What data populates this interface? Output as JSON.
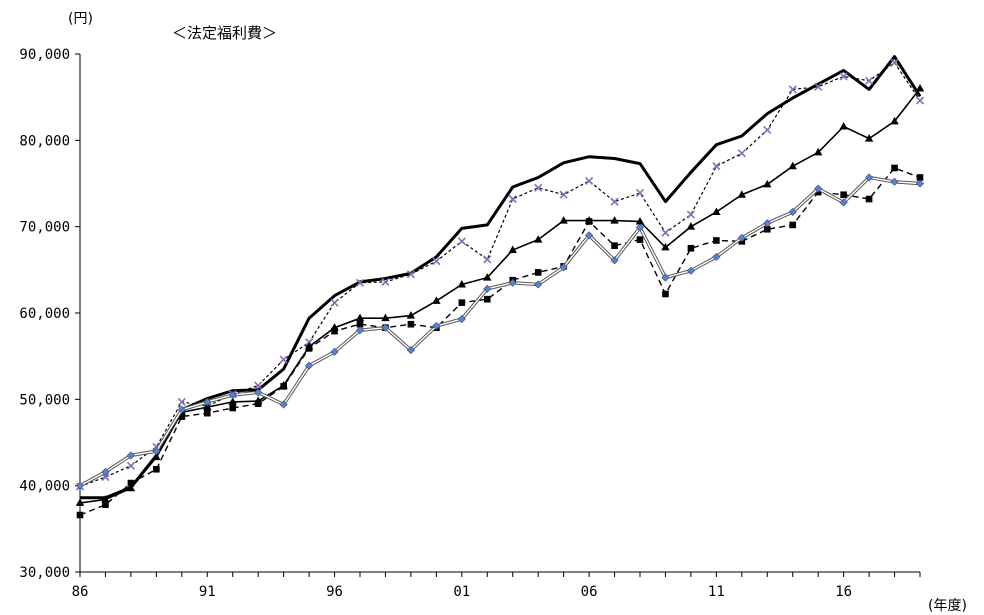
{
  "chart_data": {
    "type": "line",
    "title": "＜法定福利費＞",
    "ylabel": "(円)",
    "xlabel": "(年度)",
    "ylim": [
      30000,
      90000
    ],
    "y_ticks": [
      "30,000",
      "40,000",
      "50,000",
      "60,000",
      "70,000",
      "80,000",
      "90,000"
    ],
    "y_tick_values": [
      30000,
      40000,
      50000,
      60000,
      70000,
      80000,
      90000
    ],
    "x_ticks": [
      "86",
      "91",
      "96",
      "01",
      "06",
      "11",
      "16"
    ],
    "x_tick_years": [
      1986,
      1991,
      1996,
      2001,
      2006,
      2011,
      2016
    ],
    "xlim": [
      1986,
      2019
    ],
    "grid": false,
    "legend": "none",
    "x": [
      1986,
      1987,
      1988,
      1989,
      1990,
      1991,
      1992,
      1993,
      1994,
      1995,
      1996,
      1997,
      1998,
      1999,
      2000,
      2001,
      2002,
      2003,
      2004,
      2005,
      2006,
      2007,
      2008,
      2009,
      2010,
      2011,
      2012,
      2013,
      2014,
      2015,
      2016,
      2017,
      2018,
      2019
    ],
    "series": [
      {
        "style": "thick-solid",
        "color": "#000000",
        "values": [
          38600,
          38600,
          39800,
          43500,
          48800,
          50100,
          51000,
          51100,
          53500,
          59400,
          62000,
          63600,
          64000,
          64600,
          66500,
          69800,
          70200,
          74600,
          75700,
          77400,
          78100,
          77900,
          77300,
          72900,
          76300,
          79500,
          80500,
          83100,
          84900,
          86500,
          88100,
          85900,
          89700,
          85100
        ]
      },
      {
        "style": "dotted-cross",
        "color": "#000000",
        "marker_color": "#8a6ab8",
        "values": [
          39900,
          41000,
          42300,
          44500,
          49700,
          49200,
          50600,
          51600,
          54600,
          56600,
          61200,
          63500,
          63600,
          64500,
          66000,
          68300,
          66200,
          73200,
          74500,
          73700,
          75300,
          72900,
          73900,
          69300,
          71400,
          77000,
          78500,
          81200,
          85900,
          86200,
          87400,
          86900,
          89000,
          84600
        ]
      },
      {
        "style": "solid-triangle",
        "color": "#000000",
        "values": [
          38000,
          38400,
          39700,
          43300,
          48500,
          49100,
          49700,
          49800,
          51600,
          56100,
          58300,
          59400,
          59400,
          59700,
          61400,
          63300,
          64100,
          67300,
          68500,
          70700,
          70700,
          70700,
          70600,
          67600,
          70000,
          71700,
          73700,
          74900,
          77000,
          78600,
          81600,
          80200,
          82200,
          86000
        ]
      },
      {
        "style": "dashed-square",
        "color": "#000000",
        "values": [
          36600,
          37800,
          40300,
          41900,
          48000,
          48400,
          49000,
          49500,
          51500,
          55900,
          57900,
          58700,
          58300,
          58700,
          58300,
          61200,
          61600,
          63800,
          64700,
          65400,
          70600,
          67800,
          68500,
          62200,
          67500,
          68400,
          68300,
          69700,
          70200,
          74000,
          73700,
          73200,
          76800,
          75700
        ]
      },
      {
        "style": "double-diamond",
        "color": "#555555",
        "marker_color": "#5b83c8",
        "values": [
          40000,
          41600,
          43500,
          44000,
          48800,
          49700,
          50500,
          50800,
          49400,
          53900,
          55500,
          58000,
          58300,
          55700,
          58500,
          59300,
          62800,
          63500,
          63300,
          65300,
          69000,
          66100,
          69900,
          64100,
          64900,
          66500,
          68700,
          70400,
          71700,
          74400,
          72800,
          75700,
          75200,
          75000
        ]
      }
    ]
  }
}
